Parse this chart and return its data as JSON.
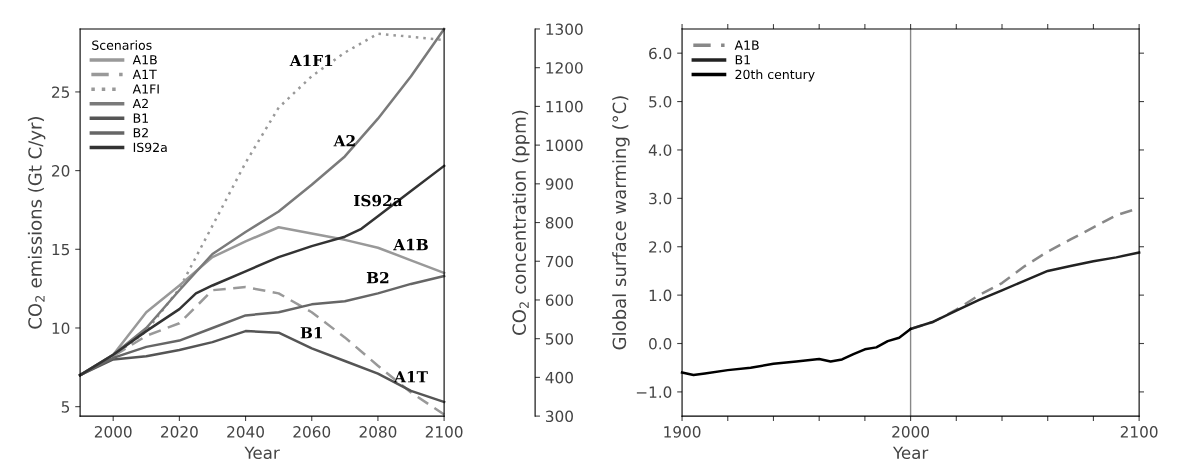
{
  "chart_data": [
    {
      "type": "line",
      "xlabel": "Year",
      "ylabel": "CO$_{2}$ emissions (Gt C/yr)",
      "y2label": "CO$_{2}$ concentration (ppm)",
      "legend_title": "Scenarios",
      "legend": "top left",
      "grid": false,
      "x": [
        1990,
        2000,
        2010,
        2020,
        2030,
        2040,
        2050,
        2060,
        2070,
        2080,
        2090,
        2100
      ],
      "xlim": [
        1990,
        2100
      ],
      "xticks": [
        2000,
        2020,
        2040,
        2060,
        2080,
        2100
      ],
      "ylim": [
        4.4,
        29
      ],
      "yticks": [
        5,
        10,
        15,
        20,
        25
      ],
      "y2lim": [
        300,
        1300
      ],
      "y2ticks": [
        300,
        400,
        500,
        600,
        700,
        800,
        900,
        1000,
        1100,
        1200,
        1300
      ],
      "series": [
        {
          "name": "A1B",
          "color": "#999999",
          "line_style": "solid",
          "values": [
            7.0,
            8.3,
            11.0,
            12.7,
            14.5,
            15.5,
            16.4,
            16.0,
            15.6,
            15.1,
            14.3,
            13.5
          ]
        },
        {
          "name": "A1T",
          "color": "#999999",
          "line_style": "dashed",
          "values": [
            7.0,
            8.2,
            9.5,
            10.3,
            12.4,
            12.6,
            12.2,
            11.0,
            9.4,
            7.6,
            5.9,
            4.5
          ]
        },
        {
          "name": "A1FI",
          "color": "#999999",
          "line_style": "dotted",
          "values": [
            7.0,
            8.2,
            9.8,
            12.5,
            16.5,
            20.5,
            24.0,
            26.0,
            27.5,
            28.7,
            28.5,
            28.3
          ]
        },
        {
          "name": "A2",
          "color": "#7a7a7a",
          "line_style": "solid",
          "values": [
            7.0,
            8.3,
            10.0,
            12.4,
            14.7,
            16.1,
            17.4,
            19.1,
            20.9,
            23.3,
            26.0,
            29.0
          ]
        },
        {
          "name": "B1",
          "color": "#555555",
          "line_style": "solid",
          "values": [
            7.0,
            8.0,
            8.2,
            8.6,
            9.1,
            9.8,
            9.7,
            8.7,
            7.9,
            7.1,
            6.0,
            5.3
          ]
        },
        {
          "name": "B2",
          "color": "#666666",
          "line_style": "solid",
          "values": [
            7.0,
            8.1,
            8.8,
            9.2,
            10.0,
            10.8,
            11.0,
            11.5,
            11.7,
            12.2,
            12.8,
            13.3
          ]
        },
        {
          "name": "IS92a",
          "color": "#333333",
          "line_style": "solid",
          "x": [
            1990,
            2000,
            2010,
            2020,
            2025,
            2030,
            2040,
            2050,
            2060,
            2070,
            2075,
            2080,
            2090,
            2100
          ],
          "values": [
            7.0,
            8.3,
            9.8,
            11.2,
            12.2,
            12.7,
            13.6,
            14.5,
            15.2,
            15.8,
            16.3,
            17.1,
            18.7,
            20.3
          ]
        }
      ],
      "annotations": [
        {
          "text": "A1F1",
          "x": 2060,
          "y": 26.0
        },
        {
          "text": "A2",
          "x": 2070,
          "y": 20.9
        },
        {
          "text": "IS92a",
          "x": 2080,
          "y": 17.1
        },
        {
          "text": "A1B",
          "x": 2090,
          "y": 14.3
        },
        {
          "text": "B2",
          "x": 2080,
          "y": 12.2
        },
        {
          "text": "B1",
          "x": 2060,
          "y": 8.7
        },
        {
          "text": "A1T",
          "x": 2090,
          "y": 5.9
        }
      ]
    },
    {
      "type": "line",
      "xlabel": "Year",
      "ylabel": "Global surface warming (°C)",
      "legend": "top left",
      "grid": false,
      "xlim": [
        1900,
        2100
      ],
      "xticks": [
        1900,
        {
          "value": 1920,
          "label": null
        },
        {
          "value": 1940,
          "label": null
        },
        {
          "value": 1960,
          "label": null
        },
        {
          "value": 1980,
          "label": null
        },
        2000,
        {
          "value": 2020,
          "label": null
        },
        {
          "value": 2040,
          "label": null
        },
        {
          "value": 2060,
          "label": null
        },
        {
          "value": 2080,
          "label": null
        },
        2100
      ],
      "ylim": [
        -1.5,
        6.5
      ],
      "yticks": [
        {
          "value": -1,
          "label": "−1.0"
        },
        {
          "value": 0,
          "label": "0.0"
        },
        {
          "value": 1,
          "label": "1.0"
        },
        {
          "value": 2,
          "label": "2.0"
        },
        {
          "value": 3,
          "label": "3.0"
        },
        {
          "value": 4,
          "label": "4.0"
        },
        {
          "value": 5,
          "label": "5.0"
        },
        {
          "value": 6,
          "label": "6.0"
        }
      ],
      "ref_lines": [
        {
          "axis": "x",
          "value": 2000,
          "color": "#888888"
        }
      ],
      "series": [
        {
          "name": "A1B",
          "color": "#888888",
          "line_style": "dashed",
          "x": [
            2000,
            2010,
            2020,
            2030,
            2040,
            2050,
            2060,
            2070,
            2080,
            2090,
            2100
          ],
          "values": [
            0.3,
            0.45,
            0.7,
            1.0,
            1.25,
            1.6,
            1.9,
            2.15,
            2.4,
            2.65,
            2.8
          ]
        },
        {
          "name": "B1",
          "color": "#222222",
          "line_style": "solid",
          "x": [
            2000,
            2010,
            2020,
            2030,
            2040,
            2050,
            2060,
            2070,
            2080,
            2090,
            2100
          ],
          "values": [
            0.3,
            0.45,
            0.68,
            0.9,
            1.1,
            1.3,
            1.5,
            1.6,
            1.7,
            1.78,
            1.88
          ]
        },
        {
          "name": "20th century",
          "color": "#000000",
          "line_style": "solid",
          "x": [
            1900,
            1905,
            1910,
            1920,
            1930,
            1940,
            1950,
            1960,
            1965,
            1970,
            1975,
            1980,
            1985,
            1990,
            1995,
            2000
          ],
          "values": [
            -0.6,
            -0.65,
            -0.62,
            -0.55,
            -0.5,
            -0.42,
            -0.37,
            -0.32,
            -0.37,
            -0.33,
            -0.22,
            -0.12,
            -0.08,
            0.05,
            0.12,
            0.3
          ]
        }
      ]
    }
  ]
}
